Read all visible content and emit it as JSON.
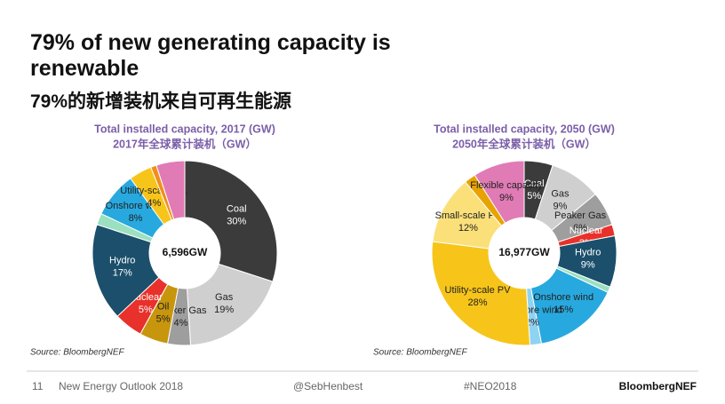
{
  "slide": {
    "title": "79% of new generating capacity is renewable",
    "subtitle": "79%的新增装机来自可再生能源",
    "footer": {
      "page": "11",
      "report": "New Energy Outlook 2018",
      "handle": "@SebHenbest",
      "hashtag": "#NEO2018",
      "brand": "BloombergNEF"
    }
  },
  "chart_data": [
    {
      "type": "pie",
      "title": "Total installed capacity, 2017 (GW)",
      "subtitle": "2017年全球累计装机（GW）",
      "total": "6,596GW",
      "source": "Source: BloombergNEF",
      "categories": [
        "Coal",
        "Gas",
        "Peaker Gas",
        "Oil",
        "Nuclear",
        "Hydro",
        null,
        "Onshore wind",
        "Utility-scale PV,",
        null,
        null
      ],
      "values": [
        30,
        19,
        4,
        5,
        5,
        17,
        2,
        8,
        4,
        1,
        5
      ],
      "value_labels": [
        "30%",
        "19%",
        "4%",
        "5%",
        "5%",
        "17%",
        null,
        "8%",
        "4%",
        null,
        null
      ],
      "colors": [
        "#3b3b3b",
        "#cfcfcf",
        "#9e9e9e",
        "#c8960c",
        "#e8312a",
        "#1b4f6b",
        "#9be0c0",
        "#27a9df",
        "#f7c51a",
        "#f08f1c",
        "#e07bb5"
      ]
    },
    {
      "type": "pie",
      "title": "Total installed capacity, 2050 (GW)",
      "subtitle": "2050年全球累计装机（GW）",
      "total": "16,977GW",
      "source": "Source: BloombergNEF",
      "categories": [
        "Coal",
        "Gas",
        "Peaker Gas",
        "Nuclear",
        "Hydro",
        null,
        "Onshore wind",
        "Offshore wind",
        "Utility-scale PV",
        "Small-scale PV",
        null,
        "Flexible capacity"
      ],
      "values": [
        5,
        9,
        6,
        2,
        9,
        1,
        15,
        2,
        28,
        12,
        2,
        9
      ],
      "value_labels": [
        "5%",
        "9%",
        "6%",
        "2%",
        "9%",
        null,
        "15%",
        "2%",
        "28%",
        "12%",
        null,
        "9%"
      ],
      "colors": [
        "#3b3b3b",
        "#cfcfcf",
        "#9e9e9e",
        "#e8312a",
        "#1b4f6b",
        "#9be0c0",
        "#27a9df",
        "#8fd3f2",
        "#f7c51a",
        "#fbe07a",
        "#e8a300",
        "#e07bb5"
      ]
    }
  ]
}
